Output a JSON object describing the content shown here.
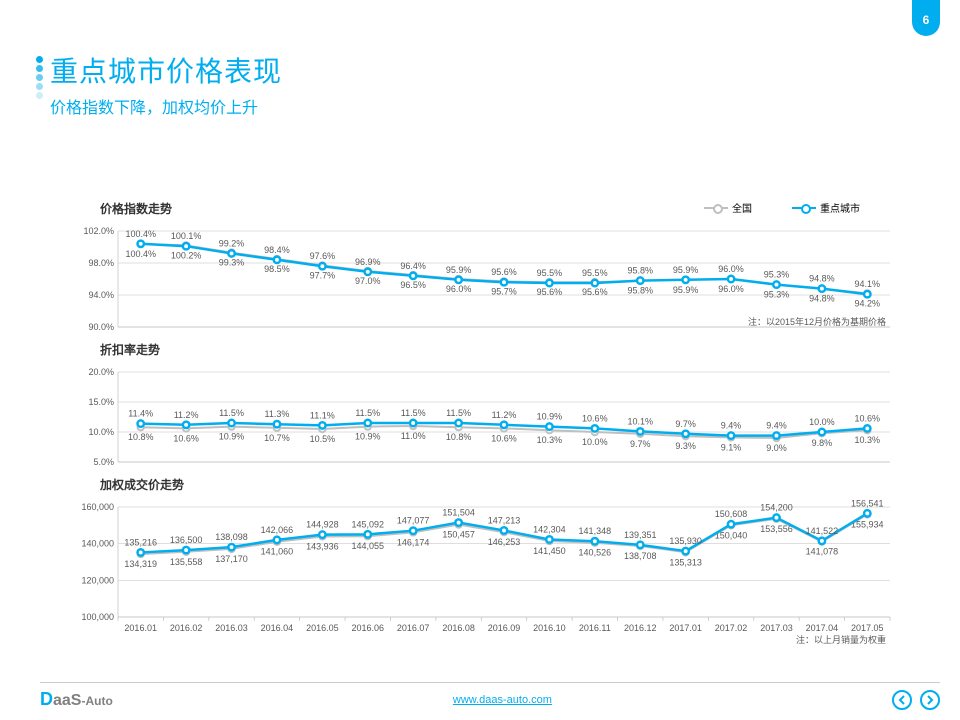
{
  "page_number": "6",
  "title": "重点城市价格表现",
  "subtitle": "价格指数下降，加权均价上升",
  "dot_colors": [
    "#00aeef",
    "#33beef",
    "#66cef2",
    "#99def6",
    "#ccedf9"
  ],
  "legend": {
    "series_a": "全国",
    "series_b": "重点城市"
  },
  "categories": [
    "2016.01",
    "2016.02",
    "2016.03",
    "2016.04",
    "2016.05",
    "2016.06",
    "2016.07",
    "2016.08",
    "2016.09",
    "2016.10",
    "2016.11",
    "2016.12",
    "2017.01",
    "2017.02",
    "2017.03",
    "2017.04",
    "2017.05"
  ],
  "chart1": {
    "title": "价格指数走势",
    "ylim": [
      90.0,
      102.0
    ],
    "ytick_step": 4.0,
    "y_suffix": "%",
    "y_decimals": 1,
    "note": "注：以2015年12月价格为基期价格",
    "series_a": {
      "values": [
        100.4,
        100.2,
        99.3,
        98.5,
        97.7,
        97.0,
        96.5,
        96.0,
        95.7,
        95.6,
        95.6,
        95.8,
        95.9,
        96.0,
        95.3,
        94.8,
        94.2
      ],
      "labels": [
        "100.4%",
        "100.2%",
        "99.3%",
        "98.5%",
        "97.7%",
        "97.0%",
        "96.5%",
        "96.0%",
        "95.7%",
        "95.6%",
        "95.6%",
        "95.8%",
        "95.9%",
        "96.0%",
        "95.3%",
        "94.8%",
        "94.2%"
      ],
      "color": "#bfbfbf"
    },
    "series_b": {
      "values": [
        100.4,
        100.1,
        99.2,
        98.4,
        97.6,
        96.9,
        96.4,
        95.9,
        95.6,
        95.5,
        95.5,
        95.8,
        95.9,
        96.0,
        95.3,
        94.8,
        94.1
      ],
      "labels": [
        "100.4%",
        "100.1%",
        "99.2%",
        "98.4%",
        "97.6%",
        "96.9%",
        "96.4%",
        "95.9%",
        "95.6%",
        "95.5%",
        "95.5%",
        "95.8%",
        "95.9%",
        "96.0%",
        "95.3%",
        "94.8%",
        "94.1%"
      ],
      "color": "#00aeef"
    }
  },
  "chart2": {
    "title": "折扣率走势",
    "ylim": [
      5.0,
      20.0
    ],
    "ytick_step": 5.0,
    "y_suffix": "%",
    "y_decimals": 1,
    "series_a": {
      "values": [
        10.8,
        10.6,
        10.9,
        10.7,
        10.5,
        10.9,
        11.0,
        10.8,
        10.6,
        10.3,
        10.0,
        9.7,
        9.3,
        9.1,
        9.0,
        9.8,
        10.3
      ],
      "labels": [
        "10.8%",
        "10.6%",
        "10.9%",
        "10.7%",
        "10.5%",
        "10.9%",
        "11.0%",
        "10.8%",
        "10.6%",
        "10.3%",
        "10.0%",
        "9.7%",
        "9.3%",
        "9.1%",
        "9.0%",
        "9.8%",
        "10.3%"
      ],
      "color": "#bfbfbf"
    },
    "series_b": {
      "values": [
        11.4,
        11.2,
        11.5,
        11.3,
        11.1,
        11.5,
        11.5,
        11.5,
        11.2,
        10.9,
        10.6,
        10.1,
        9.7,
        9.4,
        9.4,
        10.0,
        10.6
      ],
      "labels": [
        "11.4%",
        "11.2%",
        "11.5%",
        "11.3%",
        "11.1%",
        "11.5%",
        "11.5%",
        "11.5%",
        "11.2%",
        "10.9%",
        "10.6%",
        "10.1%",
        "9.7%",
        "9.4%",
        "9.4%",
        "10.0%",
        "10.6%"
      ],
      "color": "#00aeef"
    }
  },
  "chart3": {
    "title": "加权成交价走势",
    "ylim": [
      100000,
      160000
    ],
    "ytick_step": 20000,
    "y_suffix": "",
    "y_decimals": 0,
    "note": "注：以上月销量为权重",
    "show_x": true,
    "series_a": {
      "values": [
        134319,
        135558,
        137170,
        141060,
        143936,
        144055,
        146174,
        150457,
        146253,
        141450,
        140526,
        138708,
        135313,
        150040,
        153556,
        141078,
        155934
      ],
      "labels": [
        "134,319",
        "135,558",
        "137,170",
        "141,060",
        "143,936",
        "144,055",
        "146,174",
        "150,457",
        "146,253",
        "141,450",
        "140,526",
        "138,708",
        "135,313",
        "150,040",
        "153,556",
        "141,078",
        "155,934"
      ],
      "color": "#bfbfbf"
    },
    "series_b": {
      "values": [
        135216,
        136500,
        138098,
        142066,
        144928,
        145092,
        147077,
        151504,
        147213,
        142304,
        141348,
        139351,
        135930,
        150608,
        154200,
        141522,
        156541
      ],
      "labels": [
        "135,216",
        "136,500",
        "138,098",
        "142,066",
        "144,928",
        "145,092",
        "147,077",
        "151,504",
        "147,213",
        "142,304",
        "141,348",
        "139,351",
        "135,930",
        "150,608",
        "154,200",
        "141,522",
        "156,541"
      ],
      "color": "#00aeef"
    }
  },
  "footer": {
    "link": "www.daas-auto.com",
    "logo_d": "D",
    "logo_aas": "aaS",
    "logo_auto": "-Auto"
  }
}
